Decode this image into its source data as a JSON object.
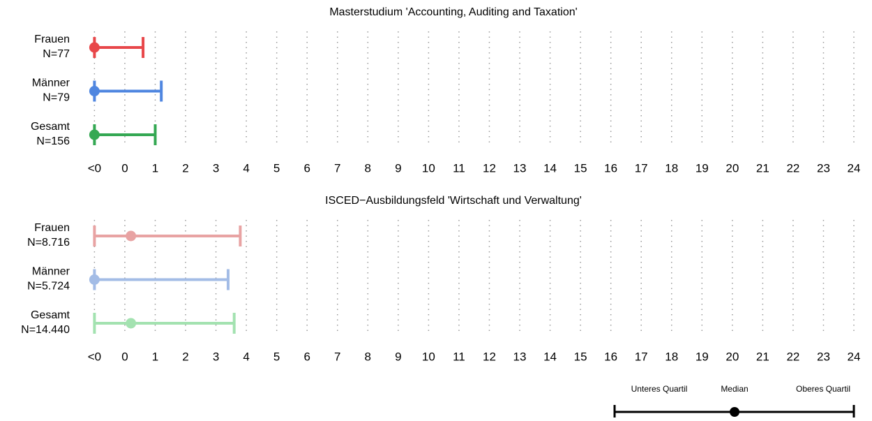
{
  "chart_data": [
    {
      "type": "range",
      "title": "Masterstudium 'Accounting, Auditing and Taxation'",
      "xlim": [
        -1,
        24
      ],
      "xticks": [
        {
          "value": -1,
          "label": "<0"
        },
        0,
        1,
        2,
        3,
        4,
        5,
        6,
        7,
        8,
        9,
        10,
        11,
        12,
        13,
        14,
        15,
        16,
        17,
        18,
        19,
        20,
        21,
        22,
        23,
        24
      ],
      "grid": true,
      "rows": [
        {
          "label": "Frauen",
          "n": "N=77",
          "color": "#e8474a",
          "lower": -1,
          "median": -1,
          "upper": 0.6
        },
        {
          "label": "Männer",
          "n": "N=79",
          "color": "#4f86e0",
          "lower": -1,
          "median": -1,
          "upper": 1.2
        },
        {
          "label": "Gesamt",
          "n": "N=156",
          "color": "#34a853",
          "lower": -1,
          "median": -1,
          "upper": 1.0
        }
      ]
    },
    {
      "type": "range",
      "title": "ISCED−Ausbildungsfeld 'Wirtschaft und Verwaltung'",
      "xlim": [
        -1,
        24
      ],
      "xticks": [
        {
          "value": -1,
          "label": "<0"
        },
        0,
        1,
        2,
        3,
        4,
        5,
        6,
        7,
        8,
        9,
        10,
        11,
        12,
        13,
        14,
        15,
        16,
        17,
        18,
        19,
        20,
        21,
        22,
        23,
        24
      ],
      "grid": true,
      "rows": [
        {
          "label": "Frauen",
          "n": "N=8.716",
          "color": "#e8a3a3",
          "lower": -1,
          "median": 0.2,
          "upper": 3.8
        },
        {
          "label": "Männer",
          "n": "N=5.724",
          "color": "#a3bce6",
          "lower": -1,
          "median": -1,
          "upper": 3.4
        },
        {
          "label": "Gesamt",
          "n": "N=14.440",
          "color": "#a3e2b0",
          "lower": -1,
          "median": 0.2,
          "upper": 3.6
        }
      ]
    }
  ],
  "legend": {
    "lower": "Unteres Quartil",
    "median": "Median",
    "upper": "Oberes Quartil"
  }
}
